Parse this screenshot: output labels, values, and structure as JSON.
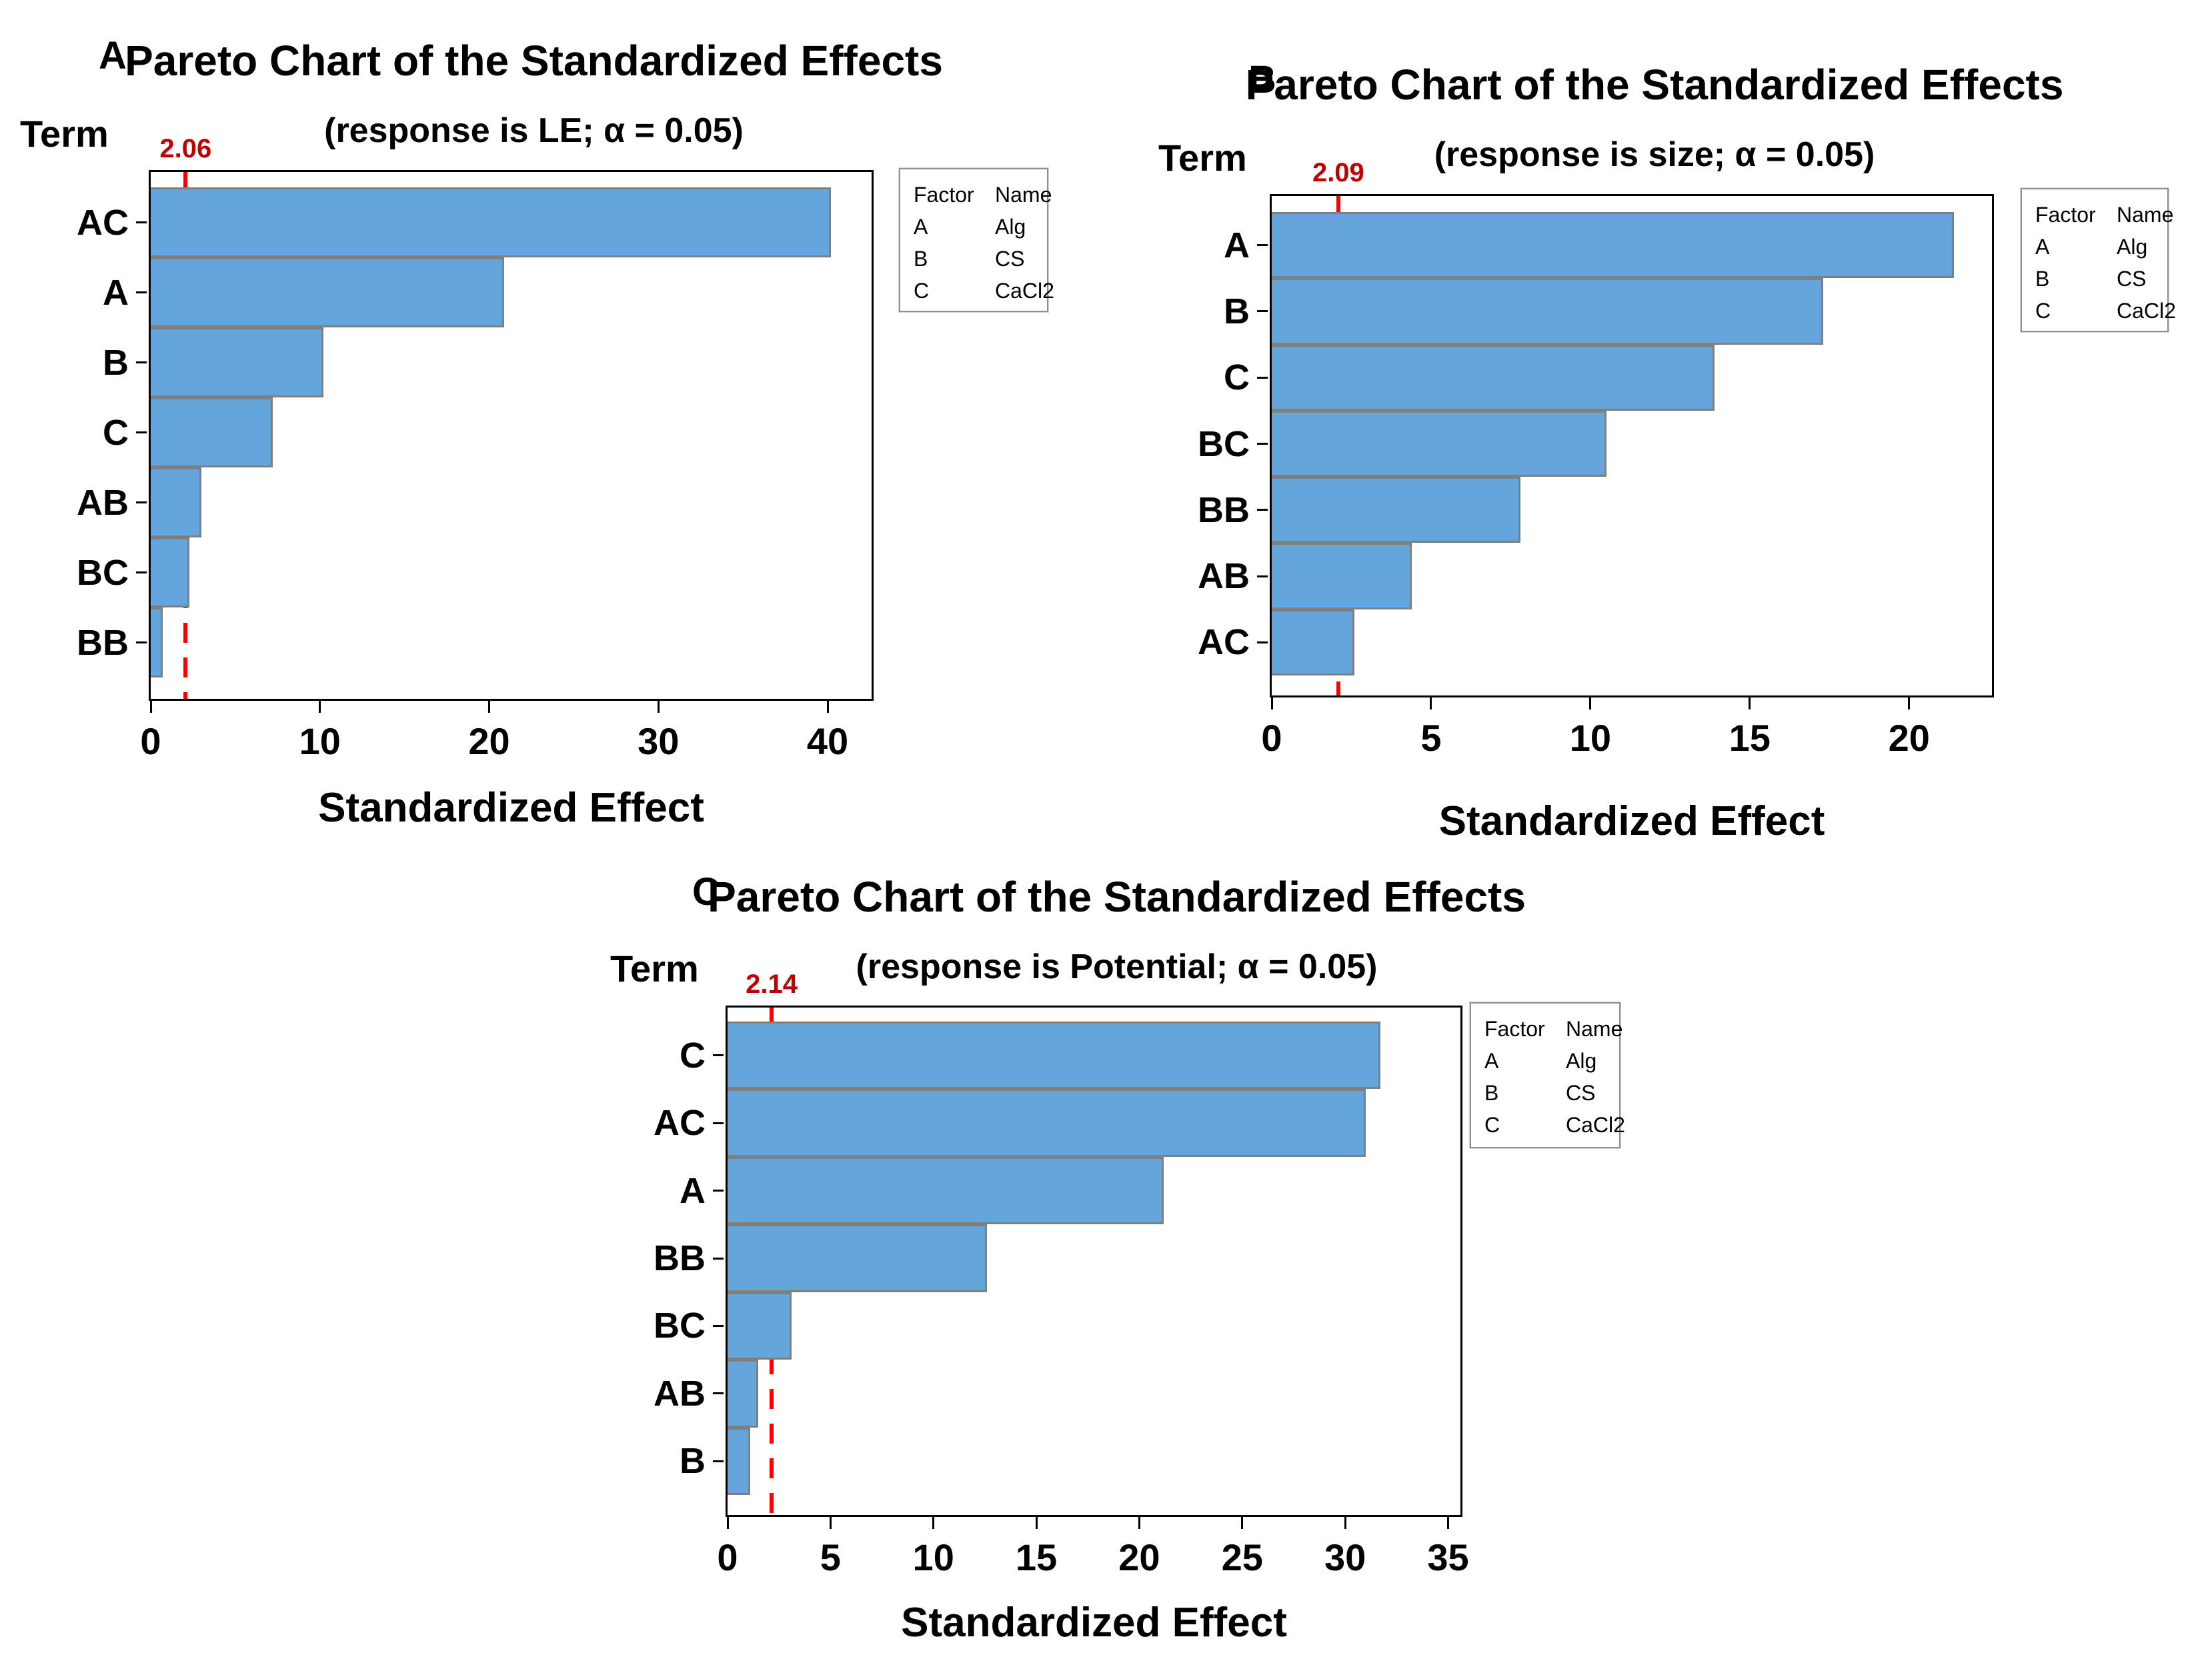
{
  "figure": {
    "background": "#ffffff"
  },
  "colors": {
    "bar_fill": "#64A6DB",
    "bar_border": "#7f7f7f",
    "reference_line": "#FF0000",
    "reference_label": "#C00000",
    "frame": "#000000",
    "legend_border": "#8f8f8f"
  },
  "legend": {
    "headers": [
      "Factor",
      "Name"
    ],
    "rows": [
      [
        "A",
        "Alg"
      ],
      [
        "B",
        "CS"
      ],
      [
        "C",
        "CaCl2"
      ]
    ]
  },
  "chart_data": [
    {
      "type": "bar",
      "orientation": "horizontal",
      "panel_label": "A",
      "title": "Pareto Chart of the Standardized Effects",
      "subtitle": "(response is LE; α = 0.05)",
      "ylabel": "Term",
      "xlabel": "Standardized Effect",
      "categories": [
        "AC",
        "A",
        "B",
        "C",
        "AB",
        "BC",
        "BB"
      ],
      "values": [
        40.2,
        20.9,
        10.2,
        7.2,
        3.0,
        2.3,
        0.7
      ],
      "reference_line": 2.06,
      "reference_label": "2.06",
      "xlim": [
        0,
        42.6
      ],
      "xticks": [
        0,
        10,
        20,
        30,
        40
      ],
      "grid": false,
      "legend_position": "right"
    },
    {
      "type": "bar",
      "orientation": "horizontal",
      "panel_label": "B",
      "title": "Pareto Chart of the Standardized Effects",
      "subtitle": "(response is size; α = 0.05)",
      "ylabel": "Term",
      "xlabel": "Standardized Effect",
      "categories": [
        "A",
        "B",
        "C",
        "BC",
        "BB",
        "AB",
        "AC"
      ],
      "values": [
        21.4,
        17.3,
        13.9,
        10.5,
        7.8,
        4.4,
        2.6
      ],
      "reference_line": 2.09,
      "reference_label": "2.09",
      "xlim": [
        0,
        22.6
      ],
      "xticks": [
        0,
        5,
        10,
        15,
        20
      ],
      "grid": false,
      "legend_position": "right"
    },
    {
      "type": "bar",
      "orientation": "horizontal",
      "panel_label": "C",
      "title": "Pareto Chart of the Standardized Effects",
      "subtitle": "(response is Potential; α = 0.05)",
      "ylabel": "Term",
      "xlabel": "Standardized Effect",
      "categories": [
        "C",
        "AC",
        "A",
        "BB",
        "BC",
        "AB",
        "B"
      ],
      "values": [
        31.7,
        31.0,
        21.2,
        12.6,
        3.1,
        1.5,
        1.1
      ],
      "reference_line": 2.14,
      "reference_label": "2.14",
      "xlim": [
        0,
        35.6
      ],
      "xticks": [
        0,
        5,
        10,
        15,
        20,
        25,
        30,
        35
      ],
      "grid": false,
      "legend_position": "right"
    }
  ]
}
